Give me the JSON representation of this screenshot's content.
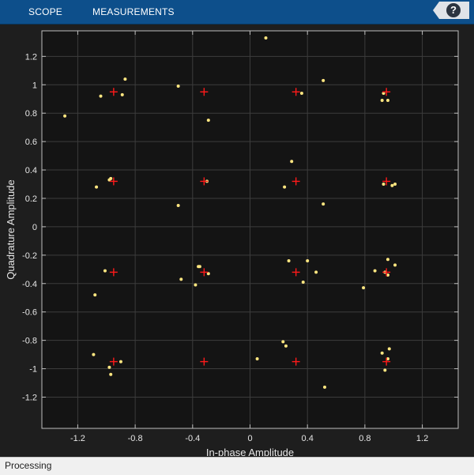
{
  "toolstrip": {
    "tabs": [
      {
        "label": "SCOPE"
      },
      {
        "label": "MEASUREMENTS"
      }
    ],
    "help_label": "?",
    "background": "#0d4f8b"
  },
  "status": {
    "text": "Processing"
  },
  "chart_data": {
    "type": "scatter",
    "title": "",
    "xlabel": "In-phase Amplitude",
    "ylabel": "Quadrature Amplitude",
    "xlim": [
      -1.45,
      1.45
    ],
    "ylim": [
      -1.42,
      1.38
    ],
    "x_ticks": [
      -1.2,
      -0.8,
      -0.4,
      0,
      0.4,
      0.8,
      1.2
    ],
    "x_tick_labels": [
      "-1.2",
      "-0.8",
      "-0.4",
      "0",
      "0.4",
      "0.8",
      "1.2"
    ],
    "y_ticks": [
      1.2,
      1,
      0.8,
      0.6,
      0.4,
      0.2,
      0,
      -0.2,
      -0.4,
      -0.6,
      -0.8,
      -1,
      -1.2
    ],
    "y_tick_labels": [
      "1.2",
      "1",
      "0.8",
      "0.6",
      "0.4",
      "0.2",
      "0",
      "-0.2",
      "-0.4",
      "-0.6",
      "-0.8",
      "-1",
      "-1.2"
    ],
    "grid": true,
    "background": "#141414",
    "grid_color": "#3c3c3c",
    "series": [
      {
        "role": "reference_constellation",
        "marker": "plus",
        "color": "#ff1a1a",
        "points": [
          [
            -0.95,
            0.95
          ],
          [
            -0.32,
            0.95
          ],
          [
            0.32,
            0.95
          ],
          [
            0.95,
            0.95
          ],
          [
            -0.95,
            0.32
          ],
          [
            -0.32,
            0.32
          ],
          [
            0.32,
            0.32
          ],
          [
            0.95,
            0.32
          ],
          [
            -0.95,
            -0.32
          ],
          [
            -0.32,
            -0.32
          ],
          [
            0.32,
            -0.32
          ],
          [
            0.95,
            -0.32
          ],
          [
            -0.95,
            -0.95
          ],
          [
            -0.32,
            -0.95
          ],
          [
            0.32,
            -0.95
          ],
          [
            0.95,
            -0.95
          ]
        ]
      },
      {
        "role": "received_symbols",
        "marker": "dot",
        "color": "#ffe680",
        "points": [
          [
            0.11,
            1.33
          ],
          [
            -0.87,
            1.04
          ],
          [
            -1.04,
            0.92
          ],
          [
            -0.89,
            0.93
          ],
          [
            -0.5,
            0.99
          ],
          [
            0.51,
            1.03
          ],
          [
            0.36,
            0.94
          ],
          [
            0.93,
            0.94
          ],
          [
            0.92,
            0.89
          ],
          [
            0.96,
            0.89
          ],
          [
            -1.29,
            0.78
          ],
          [
            -0.29,
            0.75
          ],
          [
            0.29,
            0.46
          ],
          [
            -0.97,
            0.34
          ],
          [
            -0.98,
            0.33
          ],
          [
            -0.3,
            0.32
          ],
          [
            -1.07,
            0.28
          ],
          [
            0.24,
            0.28
          ],
          [
            0.93,
            0.3
          ],
          [
            0.99,
            0.29
          ],
          [
            1.01,
            0.3
          ],
          [
            -0.5,
            0.15
          ],
          [
            0.51,
            0.16
          ],
          [
            0.27,
            -0.24
          ],
          [
            0.4,
            -0.24
          ],
          [
            -0.35,
            -0.28
          ],
          [
            -0.36,
            -0.28
          ],
          [
            0.96,
            -0.23
          ],
          [
            1.01,
            -0.27
          ],
          [
            -1.01,
            -0.31
          ],
          [
            -0.29,
            -0.33
          ],
          [
            0.46,
            -0.32
          ],
          [
            0.87,
            -0.31
          ],
          [
            0.94,
            -0.32
          ],
          [
            0.96,
            -0.34
          ],
          [
            -0.48,
            -0.37
          ],
          [
            0.37,
            -0.39
          ],
          [
            -0.38,
            -0.41
          ],
          [
            0.79,
            -0.43
          ],
          [
            -1.08,
            -0.48
          ],
          [
            0.23,
            -0.81
          ],
          [
            0.25,
            -0.84
          ],
          [
            -1.09,
            -0.9
          ],
          [
            0.92,
            -0.89
          ],
          [
            0.97,
            -0.86
          ],
          [
            0.05,
            -0.93
          ],
          [
            -0.9,
            -0.95
          ],
          [
            0.96,
            -0.93
          ],
          [
            -0.98,
            -0.99
          ],
          [
            0.94,
            -1.01
          ],
          [
            -0.97,
            -1.04
          ],
          [
            0.52,
            -1.13
          ]
        ]
      }
    ]
  }
}
